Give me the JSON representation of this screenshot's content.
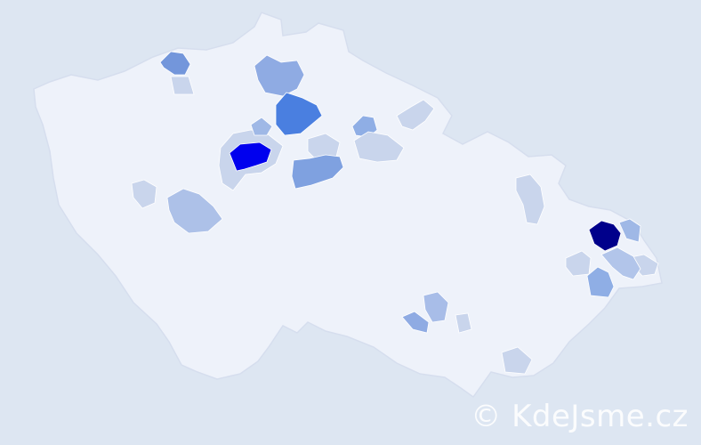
{
  "map": {
    "country_fill": "#eef2fa",
    "border_color": "#d6deee",
    "regions": [
      {
        "name": "",
        "color": "#0000ee"
      },
      {
        "name": "",
        "color": "#00008b"
      },
      {
        "name": "",
        "color": "#4a7fe0"
      },
      {
        "name": "",
        "color": "#7fa1e0"
      },
      {
        "name": "",
        "color": "#8fabe3"
      },
      {
        "name": "",
        "color": "#7396db"
      },
      {
        "name": "",
        "color": "#adc1e8"
      },
      {
        "name": "",
        "color": "#c9d5ec"
      },
      {
        "name": "",
        "color": "#c9d5ec"
      },
      {
        "name": "",
        "color": "#8faee5"
      },
      {
        "name": "",
        "color": "#c9d5ec"
      },
      {
        "name": "",
        "color": "#8faee5"
      },
      {
        "name": "",
        "color": "#b2c5ea"
      },
      {
        "name": "",
        "color": "#c9d5ec"
      },
      {
        "name": "",
        "color": "#9fb8e6"
      },
      {
        "name": "",
        "color": "#c9d5ec"
      },
      {
        "name": "",
        "color": "#8fabe3"
      },
      {
        "name": "",
        "color": "#a8bde8"
      },
      {
        "name": "",
        "color": "#c9d5ec"
      },
      {
        "name": "",
        "color": "#c9d5ec"
      },
      {
        "name": "",
        "color": "#c9d5ec"
      },
      {
        "name": "",
        "color": "#c9d5ec"
      },
      {
        "name": "",
        "color": "#c9d5ec"
      },
      {
        "name": "",
        "color": "#c9d5ec"
      },
      {
        "name": "",
        "color": "#9fb8e6"
      }
    ]
  },
  "watermark": "© KdeJsme.cz"
}
